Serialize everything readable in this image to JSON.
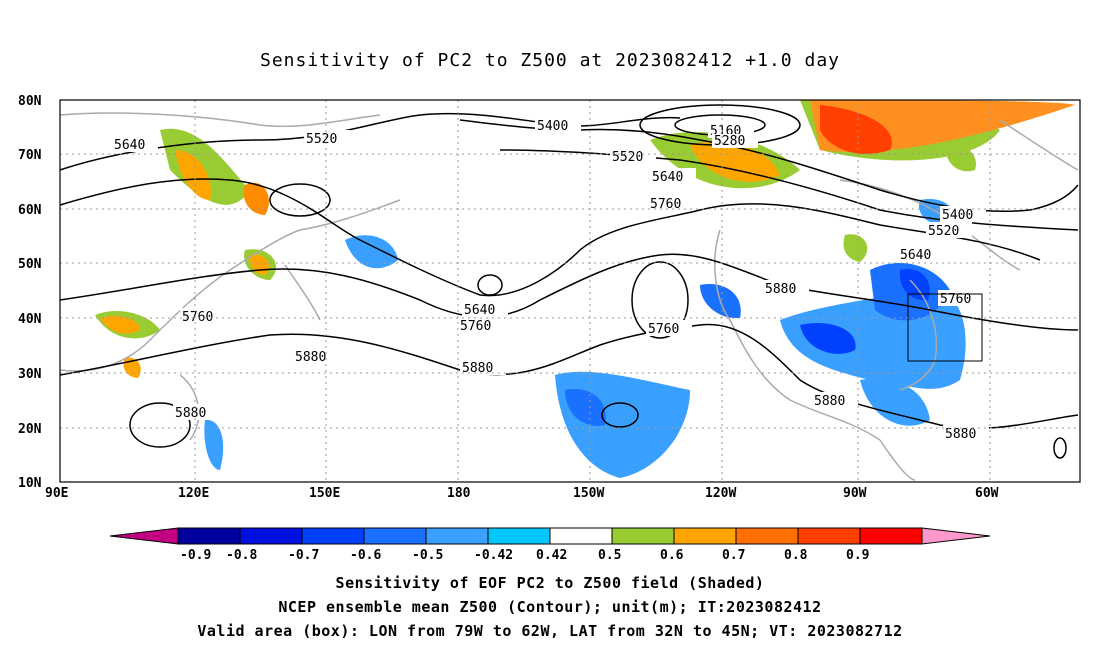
{
  "title": "Sensitivity of PC2 to Z500 at 2023082412 +1.0 day",
  "lat_ticks": [
    "80N",
    "70N",
    "60N",
    "50N",
    "40N",
    "30N",
    "20N",
    "10N"
  ],
  "lon_ticks": [
    "90E",
    "120E",
    "150E",
    "180",
    "150W",
    "120W",
    "90W",
    "60W"
  ],
  "contour_labels": [
    "5640",
    "5520",
    "5400",
    "5160",
    "5280",
    "5520",
    "5640",
    "5760",
    "5400",
    "5520",
    "5640",
    "5760",
    "5880",
    "5760",
    "5640",
    "5760",
    "5880",
    "5880",
    "5880",
    "5880",
    "5760",
    "5880"
  ],
  "colorbar": {
    "labels": [
      "-0.9",
      "-0.8",
      "-0.7",
      "-0.6",
      "-0.5",
      "-0.42",
      "0.42",
      "0.5",
      "0.6",
      "0.7",
      "0.8",
      "0.9"
    ],
    "colors": [
      "#0000a0",
      "#0010e0",
      "#0040ff",
      "#1a70ff",
      "#3aa0ff",
      "#00c8ff",
      "#ffffff",
      "#99cc33",
      "#ffa500",
      "#ff7000",
      "#ff4000",
      "#ff0000"
    ],
    "low_arrow": "#c00080",
    "high_arrow": "#ff99cc"
  },
  "captions": [
    "Sensitivity of EOF PC2 to Z500 field (Shaded)",
    "NCEP ensemble mean Z500 (Contour); unit(m); IT:2023082412",
    "Valid area (box): LON from 79W to 62W, LAT from 32N to 45N; VT: 2023082712"
  ]
}
